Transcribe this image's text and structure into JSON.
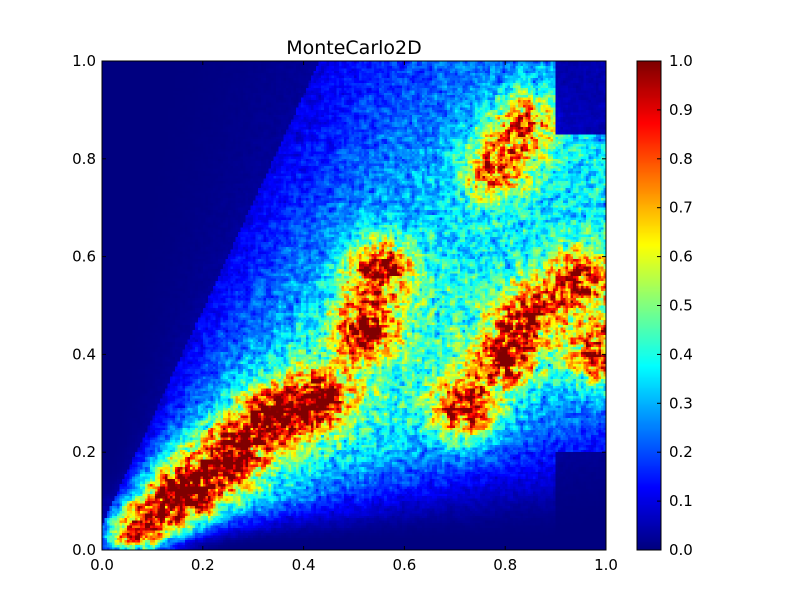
{
  "chart_data": {
    "type": "heatmap",
    "title": "MonteCarlo2D",
    "xlabel": "",
    "ylabel": "",
    "xlim": [
      0.0,
      1.0
    ],
    "ylim": [
      0.0,
      1.0
    ],
    "x_ticks": [
      "0.0",
      "0.2",
      "0.4",
      "0.6",
      "0.8",
      "1.0"
    ],
    "y_ticks": [
      "0.0",
      "0.2",
      "0.4",
      "0.6",
      "0.8",
      "1.0"
    ],
    "grid": false,
    "colormap": "jet",
    "colorbar": {
      "range": [
        0.0,
        1.0
      ],
      "ticks": [
        "0.0",
        "0.1",
        "0.2",
        "0.3",
        "0.4",
        "0.5",
        "0.6",
        "0.7",
        "0.8",
        "0.9",
        "1.0"
      ],
      "placement": "right"
    },
    "grid_resolution": [
      200,
      200
    ],
    "value_description": "normalized density in [0,1]; values approximated from colors",
    "hotspots": [
      {
        "x": 0.07,
        "y": 0.04,
        "value": 1.0
      },
      {
        "x": 0.16,
        "y": 0.12,
        "value": 0.95
      },
      {
        "x": 0.25,
        "y": 0.19,
        "value": 0.92
      },
      {
        "x": 0.33,
        "y": 0.27,
        "value": 0.9
      },
      {
        "x": 0.43,
        "y": 0.31,
        "value": 0.88
      },
      {
        "x": 0.55,
        "y": 0.57,
        "value": 0.95
      },
      {
        "x": 0.52,
        "y": 0.45,
        "value": 0.85
      },
      {
        "x": 0.72,
        "y": 0.29,
        "value": 0.9
      },
      {
        "x": 0.8,
        "y": 0.39,
        "value": 0.85
      },
      {
        "x": 0.85,
        "y": 0.48,
        "value": 0.8
      },
      {
        "x": 0.84,
        "y": 0.87,
        "value": 0.75
      },
      {
        "x": 0.78,
        "y": 0.78,
        "value": 0.7
      },
      {
        "x": 0.95,
        "y": 0.55,
        "value": 0.85
      },
      {
        "x": 0.99,
        "y": 0.4,
        "value": 0.9
      }
    ],
    "empty_regions": [
      {
        "description": "upper-left triangle (y much greater than x) near 0"
      },
      {
        "description": "right edge x>0.9 with y>0.85 and y<0.2 near 0"
      }
    ]
  },
  "colors": {
    "background": "#ffffff",
    "axes_frame": "#000000",
    "jet_stops": [
      "#00007f",
      "#0000ff",
      "#007fff",
      "#00ffff",
      "#7fff7f",
      "#ffff00",
      "#ff7f00",
      "#ff0000",
      "#7f0000"
    ]
  }
}
